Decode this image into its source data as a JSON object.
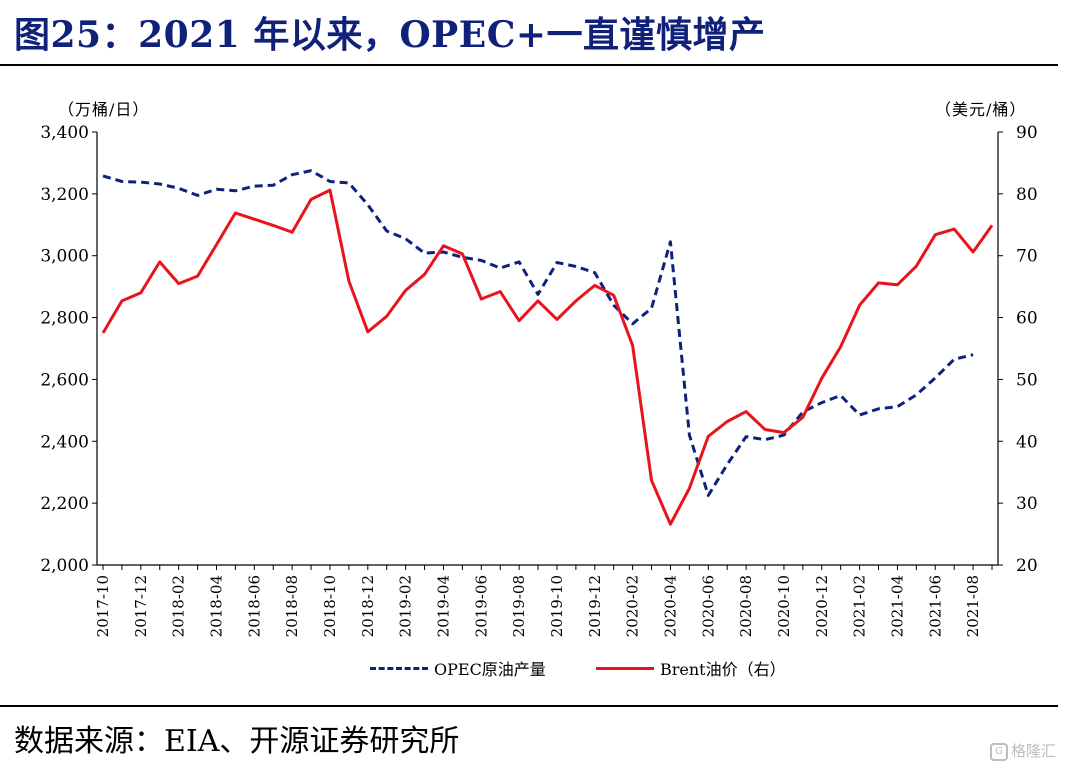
{
  "header": {
    "title": "图25：2021 年以来，OPEC+一直谨慎增产"
  },
  "footer": {
    "source": "数据来源：EIA、开源证券研究所",
    "watermark": "格隆汇",
    "watermark_icon": "G"
  },
  "colors": {
    "title": "#10217a",
    "opec": "#10217a",
    "brent": "#e8141c"
  },
  "chart_data": {
    "type": "line",
    "left_axis": {
      "unit_label": "（万桶/日）",
      "min": 2000,
      "max": 3400,
      "ticks": [
        "2,000",
        "2,200",
        "2,400",
        "2,600",
        "2,800",
        "3,000",
        "3,200",
        "3,400"
      ]
    },
    "right_axis": {
      "unit_label": "（美元/桶）",
      "min": 20,
      "max": 90,
      "ticks": [
        "20",
        "30",
        "40",
        "50",
        "60",
        "70",
        "80",
        "90"
      ]
    },
    "x_tick_labels": [
      "2017-10",
      "2017-12",
      "2018-02",
      "2018-04",
      "2018-06",
      "2018-08",
      "2018-10",
      "2018-12",
      "2019-02",
      "2019-04",
      "2019-06",
      "2019-08",
      "2019-10",
      "2019-12",
      "2020-02",
      "2020-04",
      "2020-06",
      "2020-08",
      "2020-10",
      "2020-12",
      "2021-02",
      "2021-04",
      "2021-06",
      "2021-08"
    ],
    "x": [
      "2017-10",
      "2017-11",
      "2017-12",
      "2018-01",
      "2018-02",
      "2018-03",
      "2018-04",
      "2018-05",
      "2018-06",
      "2018-07",
      "2018-08",
      "2018-09",
      "2018-10",
      "2018-11",
      "2018-12",
      "2019-01",
      "2019-02",
      "2019-03",
      "2019-04",
      "2019-05",
      "2019-06",
      "2019-07",
      "2019-08",
      "2019-09",
      "2019-10",
      "2019-11",
      "2019-12",
      "2020-01",
      "2020-02",
      "2020-03",
      "2020-04",
      "2020-05",
      "2020-06",
      "2020-07",
      "2020-08",
      "2020-09",
      "2020-10",
      "2020-11",
      "2020-12",
      "2021-01",
      "2021-02",
      "2021-03",
      "2021-04",
      "2021-05",
      "2021-06",
      "2021-07",
      "2021-08",
      "2021-09"
    ],
    "series": [
      {
        "name": "OPEC原油产量",
        "axis": "left",
        "style": "dashed",
        "values": [
          3258,
          3240,
          3238,
          3232,
          3218,
          3195,
          3215,
          3210,
          3225,
          3228,
          3262,
          3275,
          3240,
          3235,
          3165,
          3080,
          3055,
          3008,
          3012,
          2995,
          2985,
          2960,
          2980,
          2875,
          2978,
          2965,
          2945,
          2840,
          2780,
          2830,
          3045,
          2420,
          2225,
          2325,
          2415,
          2405,
          2420,
          2495,
          2525,
          2548,
          2485,
          2505,
          2512,
          2550,
          2605,
          2665,
          2680,
          null
        ]
      },
      {
        "name": "Brent油价（右）",
        "axis": "right",
        "style": "solid",
        "values": [
          57.5,
          62.7,
          64.0,
          69.0,
          65.5,
          66.7,
          71.8,
          76.9,
          75.9,
          74.9,
          73.8,
          79.1,
          80.6,
          65.9,
          57.7,
          60.2,
          64.4,
          67.0,
          71.6,
          70.3,
          63.0,
          64.2,
          59.5,
          62.7,
          59.7,
          62.7,
          65.2,
          63.6,
          55.5,
          33.7,
          26.6,
          32.4,
          40.8,
          43.2,
          44.8,
          41.9,
          41.4,
          43.9,
          50.2,
          55.3,
          62.0,
          65.6,
          65.3,
          68.3,
          73.4,
          74.3,
          70.6,
          74.9
        ]
      }
    ],
    "legend_position": "bottom",
    "grid": false
  }
}
